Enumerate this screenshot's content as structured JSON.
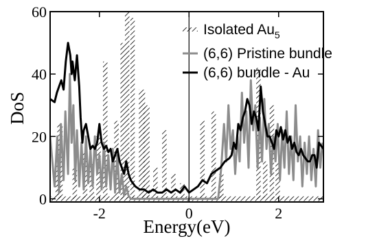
{
  "chart_data": {
    "type": "line",
    "title": "",
    "xlabel": "Energy(eV)",
    "ylabel": "DoS",
    "xlim": [
      -3.1,
      3.0
    ],
    "ylim": [
      -1,
      60
    ],
    "x_ticks": [
      -2,
      0,
      2
    ],
    "y_ticks": [
      0,
      20,
      40,
      60
    ],
    "x_tick_labels": [
      "-2",
      "0",
      "2"
    ],
    "y_tick_labels": [
      "0",
      "20",
      "40",
      "60"
    ],
    "grid": false,
    "legend_position": "top-right",
    "reference_lines": [
      {
        "axis": "x",
        "value": 0
      }
    ],
    "legend": [
      {
        "text": "Isolated Au",
        "subscript": "5",
        "style": "hatched"
      },
      {
        "text": "(6,6) Pristine bundle",
        "style": "gray"
      },
      {
        "text": "(6,6) bundle - Au",
        "style": "black"
      }
    ],
    "series": [
      {
        "name": "Isolated Au5",
        "style": "hatched",
        "color": "#000000",
        "peaks": [
          {
            "x": -2.92,
            "h": 12,
            "w": 0.06
          },
          {
            "x": -2.88,
            "h": 24,
            "w": 0.06
          },
          {
            "x": -2.55,
            "h": 10,
            "w": 0.05
          },
          {
            "x": -2.32,
            "h": 15,
            "w": 0.05
          },
          {
            "x": -2.17,
            "h": 12,
            "w": 0.05
          },
          {
            "x": -2.02,
            "h": 20,
            "w": 0.05
          },
          {
            "x": -1.87,
            "h": 44,
            "w": 0.05
          },
          {
            "x": -1.62,
            "h": 25,
            "w": 0.05
          },
          {
            "x": -1.48,
            "h": 50,
            "w": 0.05
          },
          {
            "x": -1.38,
            "h": 65,
            "w": 0.05
          },
          {
            "x": -1.26,
            "h": 58,
            "w": 0.05
          },
          {
            "x": -1.05,
            "h": 35,
            "w": 0.07
          },
          {
            "x": -0.95,
            "h": 30,
            "w": 0.07
          },
          {
            "x": -0.75,
            "h": 10,
            "w": 0.05
          },
          {
            "x": -0.55,
            "h": 22,
            "w": 0.05
          },
          {
            "x": -0.35,
            "h": 8,
            "w": 0.05
          },
          {
            "x": -0.15,
            "h": 5,
            "w": 0.05
          },
          {
            "x": 0.3,
            "h": 25,
            "w": 0.05
          },
          {
            "x": 0.55,
            "h": 28,
            "w": 0.05
          },
          {
            "x": 0.72,
            "h": 8,
            "w": 0.05
          },
          {
            "x": 1.55,
            "h": 42,
            "w": 0.05
          },
          {
            "x": 1.7,
            "h": 12,
            "w": 0.05
          },
          {
            "x": 1.85,
            "h": 30,
            "w": 0.05
          },
          {
            "x": 1.98,
            "h": 12,
            "w": 0.05
          }
        ]
      },
      {
        "name": "(6,6) Pristine bundle",
        "style": "gray",
        "color": "#8c8c8c",
        "x": [
          -3.1,
          -3.0,
          -2.94,
          -2.9,
          -2.86,
          -2.8,
          -2.76,
          -2.7,
          -2.66,
          -2.62,
          -2.58,
          -2.54,
          -2.5,
          -2.45,
          -2.4,
          -2.35,
          -2.3,
          -2.25,
          -2.2,
          -2.15,
          -2.1,
          -2.05,
          -2.0,
          -1.95,
          -1.9,
          -1.85,
          -1.8,
          -1.75,
          -1.7,
          -1.65,
          -1.6,
          -1.55,
          -1.5,
          -1.45,
          -1.4,
          -1.35,
          -1.3,
          -1.2,
          -1.1,
          -1.0,
          -0.9,
          -0.7,
          -0.5,
          -0.3,
          -0.1,
          0.1,
          0.3,
          0.5,
          0.65,
          0.72,
          0.78,
          0.83,
          0.88,
          0.93,
          0.98,
          1.03,
          1.08,
          1.13,
          1.18,
          1.23,
          1.28,
          1.33,
          1.38,
          1.43,
          1.48,
          1.53,
          1.58,
          1.63,
          1.68,
          1.73,
          1.78,
          1.83,
          1.88,
          1.93,
          1.98,
          2.03,
          2.08,
          2.13,
          2.18,
          2.23,
          2.28,
          2.33,
          2.38,
          2.43,
          2.48,
          2.53,
          2.58,
          2.63,
          2.68,
          2.73,
          2.78,
          2.83,
          2.88,
          2.93,
          2.98
        ],
        "y": [
          20,
          4,
          20,
          2,
          24,
          6,
          28,
          8,
          40,
          18,
          30,
          6,
          22,
          4,
          18,
          3,
          20,
          5,
          16,
          4,
          20,
          8,
          14,
          3,
          18,
          4,
          14,
          3,
          16,
          2,
          14,
          2,
          8,
          1,
          4,
          1,
          0,
          0,
          0,
          0,
          0,
          0,
          0,
          0,
          0,
          0,
          0,
          0,
          0,
          10,
          24,
          12,
          30,
          16,
          22,
          8,
          20,
          12,
          34,
          18,
          28,
          10,
          38,
          22,
          30,
          10,
          26,
          12,
          32,
          16,
          24,
          8,
          20,
          12,
          24,
          6,
          22,
          10,
          28,
          8,
          20,
          6,
          30,
          12,
          20,
          4,
          18,
          8,
          20,
          6,
          16,
          4,
          22,
          10,
          18
        ]
      },
      {
        "name": "(6,6) bundle - Au",
        "style": "black",
        "color": "#000000",
        "x": [
          -3.1,
          -3.0,
          -2.95,
          -2.9,
          -2.85,
          -2.8,
          -2.75,
          -2.7,
          -2.65,
          -2.62,
          -2.6,
          -2.55,
          -2.5,
          -2.45,
          -2.42,
          -2.38,
          -2.35,
          -2.3,
          -2.25,
          -2.2,
          -2.15,
          -2.1,
          -2.05,
          -2.0,
          -1.95,
          -1.9,
          -1.85,
          -1.8,
          -1.75,
          -1.7,
          -1.65,
          -1.6,
          -1.55,
          -1.5,
          -1.45,
          -1.4,
          -1.35,
          -1.3,
          -1.25,
          -1.2,
          -1.1,
          -1.0,
          -0.9,
          -0.8,
          -0.7,
          -0.6,
          -0.5,
          -0.4,
          -0.3,
          -0.2,
          -0.1,
          0.0,
          0.1,
          0.2,
          0.3,
          0.4,
          0.5,
          0.6,
          0.7,
          0.8,
          0.9,
          0.95,
          1.0,
          1.05,
          1.1,
          1.15,
          1.2,
          1.25,
          1.3,
          1.35,
          1.4,
          1.45,
          1.5,
          1.55,
          1.6,
          1.65,
          1.7,
          1.75,
          1.8,
          1.85,
          1.9,
          1.95,
          2.0,
          2.05,
          2.1,
          2.15,
          2.2,
          2.25,
          2.3,
          2.35,
          2.4,
          2.45,
          2.5,
          2.55,
          2.6,
          2.65,
          2.7,
          2.75,
          2.8,
          2.85,
          2.9,
          2.95,
          3.0
        ],
        "y": [
          32,
          31,
          34,
          36,
          38,
          35,
          44,
          50,
          46,
          40,
          44,
          38,
          46,
          36,
          26,
          18,
          22,
          24,
          20,
          16,
          17,
          16,
          18,
          24,
          18,
          16,
          17,
          15,
          16,
          12,
          14,
          16,
          12,
          10,
          8,
          12,
          8,
          6,
          5,
          4,
          3,
          3,
          2,
          3,
          2,
          2,
          3,
          2,
          3,
          2,
          4,
          2,
          3,
          4,
          6,
          5,
          8,
          9,
          10,
          12,
          13,
          14,
          18,
          16,
          24,
          22,
          26,
          28,
          32,
          30,
          24,
          28,
          26,
          22,
          36,
          28,
          24,
          20,
          20,
          18,
          16,
          22,
          20,
          23,
          19,
          22,
          18,
          20,
          16,
          18,
          15,
          14,
          16,
          14,
          13,
          12,
          12,
          14,
          14,
          10,
          18,
          17,
          16
        ]
      }
    ]
  }
}
